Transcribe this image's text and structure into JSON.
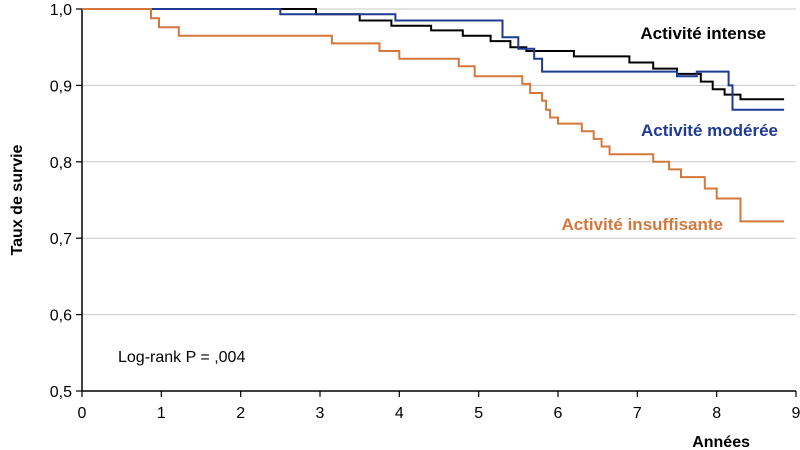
{
  "chart_data": {
    "type": "line",
    "step": true,
    "ylabel": "Taux de survie",
    "xlabel": "Années",
    "xlim": [
      0,
      9
    ],
    "ylim": [
      0.5,
      1.0
    ],
    "x_ticks": [
      0,
      1,
      2,
      3,
      4,
      5,
      6,
      7,
      8,
      9
    ],
    "y_ticks": [
      {
        "value": 0.5,
        "label": "0,5"
      },
      {
        "value": 0.6,
        "label": "0,6"
      },
      {
        "value": 0.7,
        "label": "0,7"
      },
      {
        "value": 0.8,
        "label": "0,8"
      },
      {
        "value": 0.9,
        "label": "0,9"
      },
      {
        "value": 1.0,
        "label": "1,0"
      }
    ],
    "grid": "horizontal",
    "annotation": "Log-rank P = ,004",
    "series": [
      {
        "name": "Activité intense",
        "color": "#000000",
        "points": [
          [
            0,
            1.0
          ],
          [
            2.95,
            1.0
          ],
          [
            2.95,
            0.993
          ],
          [
            3.5,
            0.993
          ],
          [
            3.5,
            0.985
          ],
          [
            3.9,
            0.985
          ],
          [
            3.9,
            0.978
          ],
          [
            4.4,
            0.978
          ],
          [
            4.4,
            0.972
          ],
          [
            4.8,
            0.972
          ],
          [
            4.8,
            0.965
          ],
          [
            5.15,
            0.965
          ],
          [
            5.15,
            0.958
          ],
          [
            5.4,
            0.958
          ],
          [
            5.4,
            0.95
          ],
          [
            5.6,
            0.95
          ],
          [
            5.6,
            0.945
          ],
          [
            6.2,
            0.945
          ],
          [
            6.2,
            0.938
          ],
          [
            6.9,
            0.938
          ],
          [
            6.9,
            0.93
          ],
          [
            7.2,
            0.93
          ],
          [
            7.2,
            0.922
          ],
          [
            7.5,
            0.922
          ],
          [
            7.5,
            0.915
          ],
          [
            7.8,
            0.915
          ],
          [
            7.8,
            0.905
          ],
          [
            7.95,
            0.905
          ],
          [
            7.95,
            0.895
          ],
          [
            8.1,
            0.895
          ],
          [
            8.1,
            0.888
          ],
          [
            8.3,
            0.888
          ],
          [
            8.3,
            0.882
          ],
          [
            8.85,
            0.882
          ]
        ]
      },
      {
        "name": "Activité modérée",
        "color": "#1f3a93",
        "points": [
          [
            0,
            1.0
          ],
          [
            2.5,
            1.0
          ],
          [
            2.5,
            0.993
          ],
          [
            3.95,
            0.993
          ],
          [
            3.95,
            0.985
          ],
          [
            5.3,
            0.985
          ],
          [
            5.3,
            0.963
          ],
          [
            5.5,
            0.963
          ],
          [
            5.5,
            0.948
          ],
          [
            5.7,
            0.948
          ],
          [
            5.7,
            0.935
          ],
          [
            5.8,
            0.935
          ],
          [
            5.8,
            0.918
          ],
          [
            7.5,
            0.918
          ],
          [
            7.5,
            0.912
          ],
          [
            7.75,
            0.912
          ],
          [
            7.75,
            0.918
          ],
          [
            8.15,
            0.918
          ],
          [
            8.15,
            0.9
          ],
          [
            8.2,
            0.9
          ],
          [
            8.2,
            0.868
          ],
          [
            8.85,
            0.868
          ]
        ]
      },
      {
        "name": "Activité insuffisante",
        "color": "#d4773b",
        "points": [
          [
            0,
            1.0
          ],
          [
            0.87,
            1.0
          ],
          [
            0.87,
            0.988
          ],
          [
            0.97,
            0.988
          ],
          [
            0.97,
            0.976
          ],
          [
            1.22,
            0.976
          ],
          [
            1.22,
            0.965
          ],
          [
            3.15,
            0.965
          ],
          [
            3.15,
            0.955
          ],
          [
            3.75,
            0.955
          ],
          [
            3.75,
            0.945
          ],
          [
            4.0,
            0.945
          ],
          [
            4.0,
            0.935
          ],
          [
            4.75,
            0.935
          ],
          [
            4.75,
            0.925
          ],
          [
            4.95,
            0.925
          ],
          [
            4.95,
            0.912
          ],
          [
            5.55,
            0.912
          ],
          [
            5.55,
            0.902
          ],
          [
            5.65,
            0.902
          ],
          [
            5.65,
            0.89
          ],
          [
            5.8,
            0.89
          ],
          [
            5.8,
            0.88
          ],
          [
            5.85,
            0.88
          ],
          [
            5.85,
            0.868
          ],
          [
            5.9,
            0.868
          ],
          [
            5.9,
            0.858
          ],
          [
            6.0,
            0.858
          ],
          [
            6.0,
            0.85
          ],
          [
            6.3,
            0.85
          ],
          [
            6.3,
            0.84
          ],
          [
            6.45,
            0.84
          ],
          [
            6.45,
            0.83
          ],
          [
            6.55,
            0.83
          ],
          [
            6.55,
            0.82
          ],
          [
            6.65,
            0.82
          ],
          [
            6.65,
            0.81
          ],
          [
            7.2,
            0.81
          ],
          [
            7.2,
            0.8
          ],
          [
            7.4,
            0.8
          ],
          [
            7.4,
            0.79
          ],
          [
            7.55,
            0.79
          ],
          [
            7.55,
            0.78
          ],
          [
            7.85,
            0.78
          ],
          [
            7.85,
            0.765
          ],
          [
            8.0,
            0.765
          ],
          [
            8.0,
            0.752
          ],
          [
            8.3,
            0.752
          ],
          [
            8.3,
            0.722
          ],
          [
            8.85,
            0.722
          ]
        ]
      }
    ]
  }
}
